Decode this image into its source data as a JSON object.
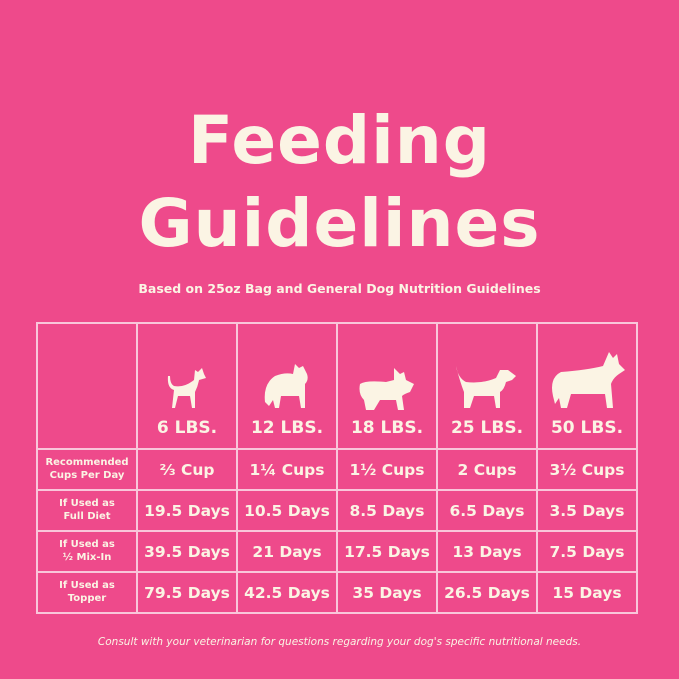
{
  "title_line1": "Feeding",
  "title_line2": "Guidelines",
  "subtitle": "Based on 25oz Bag and General Dog Nutrition Guidelines",
  "colors": {
    "background": "#ee4a8b",
    "text": "#fbf4e4",
    "grid": "#f9c6da"
  },
  "weights": [
    {
      "label": "6 LBS.",
      "icon": "chihuahua-icon"
    },
    {
      "label": "12 LBS.",
      "icon": "pomeranian-icon"
    },
    {
      "label": "18 LBS.",
      "icon": "french-bulldog-icon"
    },
    {
      "label": "25 LBS.",
      "icon": "beagle-icon"
    },
    {
      "label": "50 LBS.",
      "icon": "husky-icon"
    }
  ],
  "rows": [
    {
      "label1": "Recommended",
      "label2": "Cups Per Day",
      "values": [
        "⅔ Cup",
        "1¼ Cups",
        "1½ Cups",
        "2 Cups",
        "3½ Cups"
      ]
    },
    {
      "label1": "If Used as",
      "label2": "Full Diet",
      "values": [
        "19.5 Days",
        "10.5 Days",
        "8.5 Days",
        "6.5 Days",
        "3.5 Days"
      ]
    },
    {
      "label1": "If Used as",
      "label2": "½ Mix-In",
      "values": [
        "39.5 Days",
        "21 Days",
        "17.5 Days",
        "13 Days",
        "7.5 Days"
      ]
    },
    {
      "label1": "If Used as",
      "label2": "Topper",
      "values": [
        "79.5 Days",
        "42.5 Days",
        "35 Days",
        "26.5 Days",
        "15 Days"
      ]
    }
  ],
  "footer": "Consult with your veterinarian for questions regarding your dog's specific nutritional needs."
}
